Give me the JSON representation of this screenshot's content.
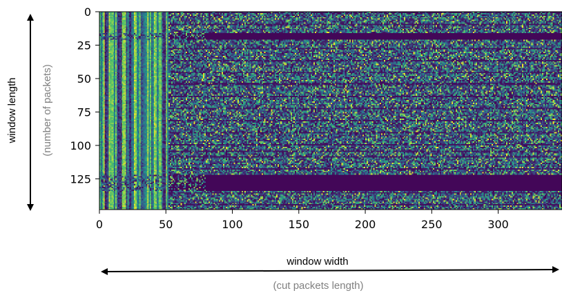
{
  "chart_data": {
    "type": "heatmap",
    "title": "",
    "colormap": "viridis",
    "colors": {
      "low": "#440154",
      "mid": "#21918c",
      "high": "#fde725",
      "dark_band": "#46045a"
    },
    "x": {
      "range": [
        0,
        348
      ],
      "ticks": [
        0,
        50,
        100,
        150,
        200,
        250,
        300
      ],
      "tick_labels": [
        "0",
        "50",
        "100",
        "150",
        "200",
        "250",
        "300"
      ]
    },
    "y": {
      "range": [
        0,
        148
      ],
      "inverted": true,
      "ticks": [
        0,
        25,
        50,
        75,
        100,
        125
      ],
      "tick_labels": [
        "0",
        "25",
        "50",
        "75",
        "100",
        "125"
      ]
    },
    "header_columns": [
      0,
      52
    ],
    "dark_row_bands": [
      [
        16,
        20
      ],
      [
        122,
        133
      ]
    ],
    "grid": false,
    "legend": "none"
  },
  "annotations": {
    "y_label": "window length",
    "y_sublabel": "(number of packets)",
    "x_label": "window width",
    "x_sublabel": "(cut packets length)"
  }
}
